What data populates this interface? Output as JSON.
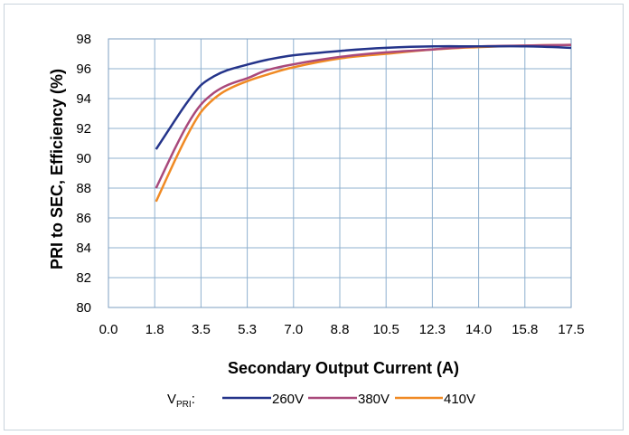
{
  "chart_data": {
    "type": "line",
    "xlabel": "Secondary Output Current (A)",
    "ylabel": "PRI to SEC, Efficiency (%)",
    "x_ticks": [
      "0.0",
      "1.8",
      "3.5",
      "5.3",
      "7.0",
      "8.8",
      "10.5",
      "12.3",
      "14.0",
      "15.8",
      "17.5"
    ],
    "xlim": [
      0,
      17.5
    ],
    "y_ticks": [
      "80",
      "82",
      "84",
      "86",
      "88",
      "90",
      "92",
      "94",
      "96",
      "98"
    ],
    "ylim": [
      80,
      98
    ],
    "grid": true,
    "legend": {
      "title_main": "V",
      "title_sub": "PRI",
      "title_suffix": ":",
      "placement": "bottom"
    },
    "series": [
      {
        "name": "260V",
        "color": "#24348a",
        "x": [
          1.8,
          2.5,
          3.0,
          3.5,
          4.0,
          4.5,
          5.3,
          6.0,
          7.0,
          8.8,
          10.5,
          12.3,
          14.0,
          15.8,
          17.5
        ],
        "y": [
          90.6,
          92.5,
          93.8,
          94.9,
          95.5,
          95.9,
          96.3,
          96.6,
          96.9,
          97.2,
          97.4,
          97.5,
          97.5,
          97.5,
          97.4
        ]
      },
      {
        "name": "380V",
        "color": "#a9497b",
        "x": [
          1.8,
          2.5,
          3.0,
          3.5,
          4.0,
          4.5,
          5.3,
          6.0,
          7.0,
          8.8,
          10.5,
          12.3,
          14.0,
          15.8,
          17.5
        ],
        "y": [
          88.0,
          90.6,
          92.3,
          93.6,
          94.4,
          94.9,
          95.4,
          95.9,
          96.3,
          96.8,
          97.1,
          97.3,
          97.5,
          97.55,
          97.6
        ]
      },
      {
        "name": "410V",
        "color": "#f08a24",
        "x": [
          1.8,
          2.5,
          3.0,
          3.5,
          4.0,
          4.5,
          5.3,
          6.0,
          7.0,
          8.8,
          10.5,
          12.3,
          14.0,
          15.8,
          17.5
        ],
        "y": [
          87.1,
          89.8,
          91.6,
          93.1,
          94.0,
          94.6,
          95.2,
          95.6,
          96.1,
          96.7,
          97.0,
          97.3,
          97.45,
          97.55,
          97.6
        ]
      }
    ]
  }
}
